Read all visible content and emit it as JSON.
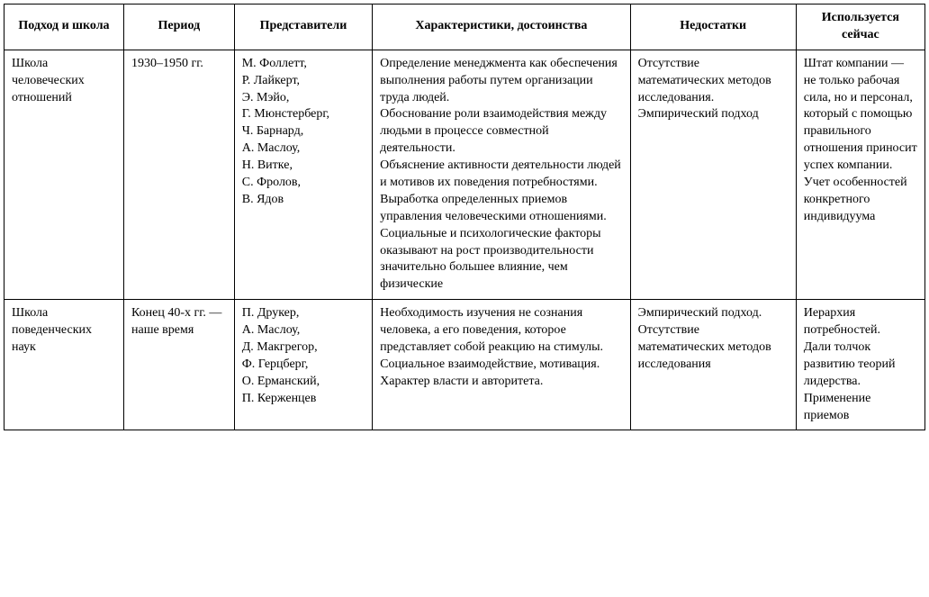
{
  "type": "table",
  "background_color": "#ffffff",
  "border_color": "#000000",
  "text_color": "#000000",
  "font_family": "serif",
  "font_size_pt": 11,
  "columns": [
    {
      "key": "approach",
      "label": "Подход\nи школа",
      "width_pct": 13,
      "align": "left"
    },
    {
      "key": "period",
      "label": "Период",
      "width_pct": 12,
      "align": "left"
    },
    {
      "key": "reps",
      "label": "Представители",
      "width_pct": 15,
      "align": "left"
    },
    {
      "key": "characteristics",
      "label": "Характеристики,\nдостоинства",
      "width_pct": 28,
      "align": "left"
    },
    {
      "key": "drawbacks",
      "label": "Недостатки",
      "width_pct": 18,
      "align": "left"
    },
    {
      "key": "usednow",
      "label": "Использует-\nся сейчас",
      "width_pct": 14,
      "align": "left"
    }
  ],
  "header": {
    "approach": "Подход и школа",
    "period": "Период",
    "reps": "Представители",
    "characteristics": "Характеристики, достоинства",
    "drawbacks": "Недостатки",
    "usednow": "Используется сейчас"
  },
  "rows": [
    {
      "approach": "Школа человеческих отношений",
      "period": "1930–1950 гг.",
      "reps": "М. Фоллетт,\nР. Лайкерт,\nЭ. Мэйо,\nГ. Мюнстерберг,\nЧ. Барнард,\nА. Маслоу,\nН. Витке,\nС. Фролов,\nВ. Ядов",
      "characteristics": "Определение менеджмента как обеспечения выполнения работы путем организации труда людей.\nОбоснование роли взаимодействия между людьми в процессе совместной деятельности.\nОбъяснение активности деятельности людей и мотивов их поведения потребностями.\nВыработка определенных приемов управления человеческими отношениями.\nСоциальные и психологические факторы оказывают на рост производительности значительно большее влияние, чем физические",
      "drawbacks": "Отсутствие математических методов исследования. Эмпирический подход",
      "usednow": "Штат компании — не только рабочая сила, но и персонал, который с помощью правильного отношения приносит успех компании.\nУчет особенностей конкретного индивидуума"
    },
    {
      "approach": "Школа поведенческих наук",
      "period": "Конец 40-х гг. — наше время",
      "reps": "П. Друкер,\nА. Маслоу,\nД. Макгрегор,\nФ. Герцберг,\nО. Ерманский,\nП. Керженцев",
      "characteristics": "Необходимость изучения не сознания человека, а его поведения, которое представляет собой реакцию на стимулы.\nСоциальное взаимодействие, мотивация.\nХарактер власти и авторитета.",
      "drawbacks": "Эмпирический подход.\nОтсутствие математических методов исследования",
      "usednow": "Иерархия потребностей.\nДали толчок развитию теорий лидерства.\nПрименение приемов"
    }
  ]
}
